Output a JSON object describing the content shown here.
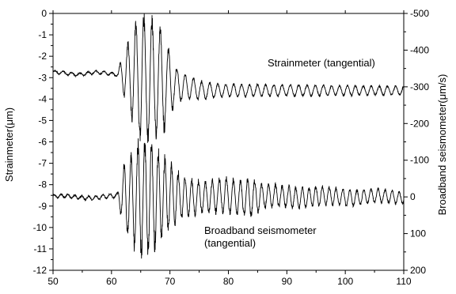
{
  "chart_data": {
    "type": "line",
    "title": "",
    "xlabel": "",
    "x_ticks": [
      50,
      60,
      70,
      80,
      90,
      100,
      110
    ],
    "xlim": [
      50,
      110
    ],
    "left_axis": {
      "label": "Strainmeter(μm)",
      "ylim": [
        -12,
        0
      ],
      "ticks": [
        0,
        -1,
        -2,
        -3,
        -4,
        -5,
        -6,
        -7,
        -8,
        -9,
        -10,
        -11,
        -12
      ]
    },
    "right_axis": {
      "label": "Broadband seismometer(μm/s)",
      "ylim": [
        200,
        -500
      ],
      "inverted": true,
      "ticks": [
        -500,
        -400,
        -300,
        -200,
        -100,
        0,
        100,
        200
      ]
    },
    "annotations": {
      "strain": "Strainmeter (tangential)",
      "seis_line1": "Broadband seismometer",
      "seis_line2": "(tangential)"
    },
    "series": [
      {
        "axis": "left",
        "baseline": -2.8,
        "drift_after_event": -3.6,
        "event_start": 61.5,
        "envelope": [
          [
            50,
            0.07
          ],
          [
            61,
            0.07
          ],
          [
            62,
            0.9
          ],
          [
            64,
            2.3
          ],
          [
            65,
            2.8
          ],
          [
            67,
            2.7
          ],
          [
            69,
            2.2
          ],
          [
            70,
            1.4
          ],
          [
            71,
            0.8
          ],
          [
            73,
            0.5
          ],
          [
            78,
            0.3
          ],
          [
            90,
            0.25
          ],
          [
            110,
            0.2
          ]
        ]
      },
      {
        "axis": "right",
        "baseline": 0,
        "event_start": 61.5,
        "envelope": [
          [
            50,
            4
          ],
          [
            61,
            6
          ],
          [
            62,
            80
          ],
          [
            64,
            130
          ],
          [
            65,
            150
          ],
          [
            67,
            140
          ],
          [
            70,
            85
          ],
          [
            72,
            55
          ],
          [
            76,
            40
          ],
          [
            84,
            50
          ],
          [
            86,
            30
          ],
          [
            95,
            25
          ],
          [
            110,
            15
          ]
        ]
      }
    ],
    "grid": false
  }
}
